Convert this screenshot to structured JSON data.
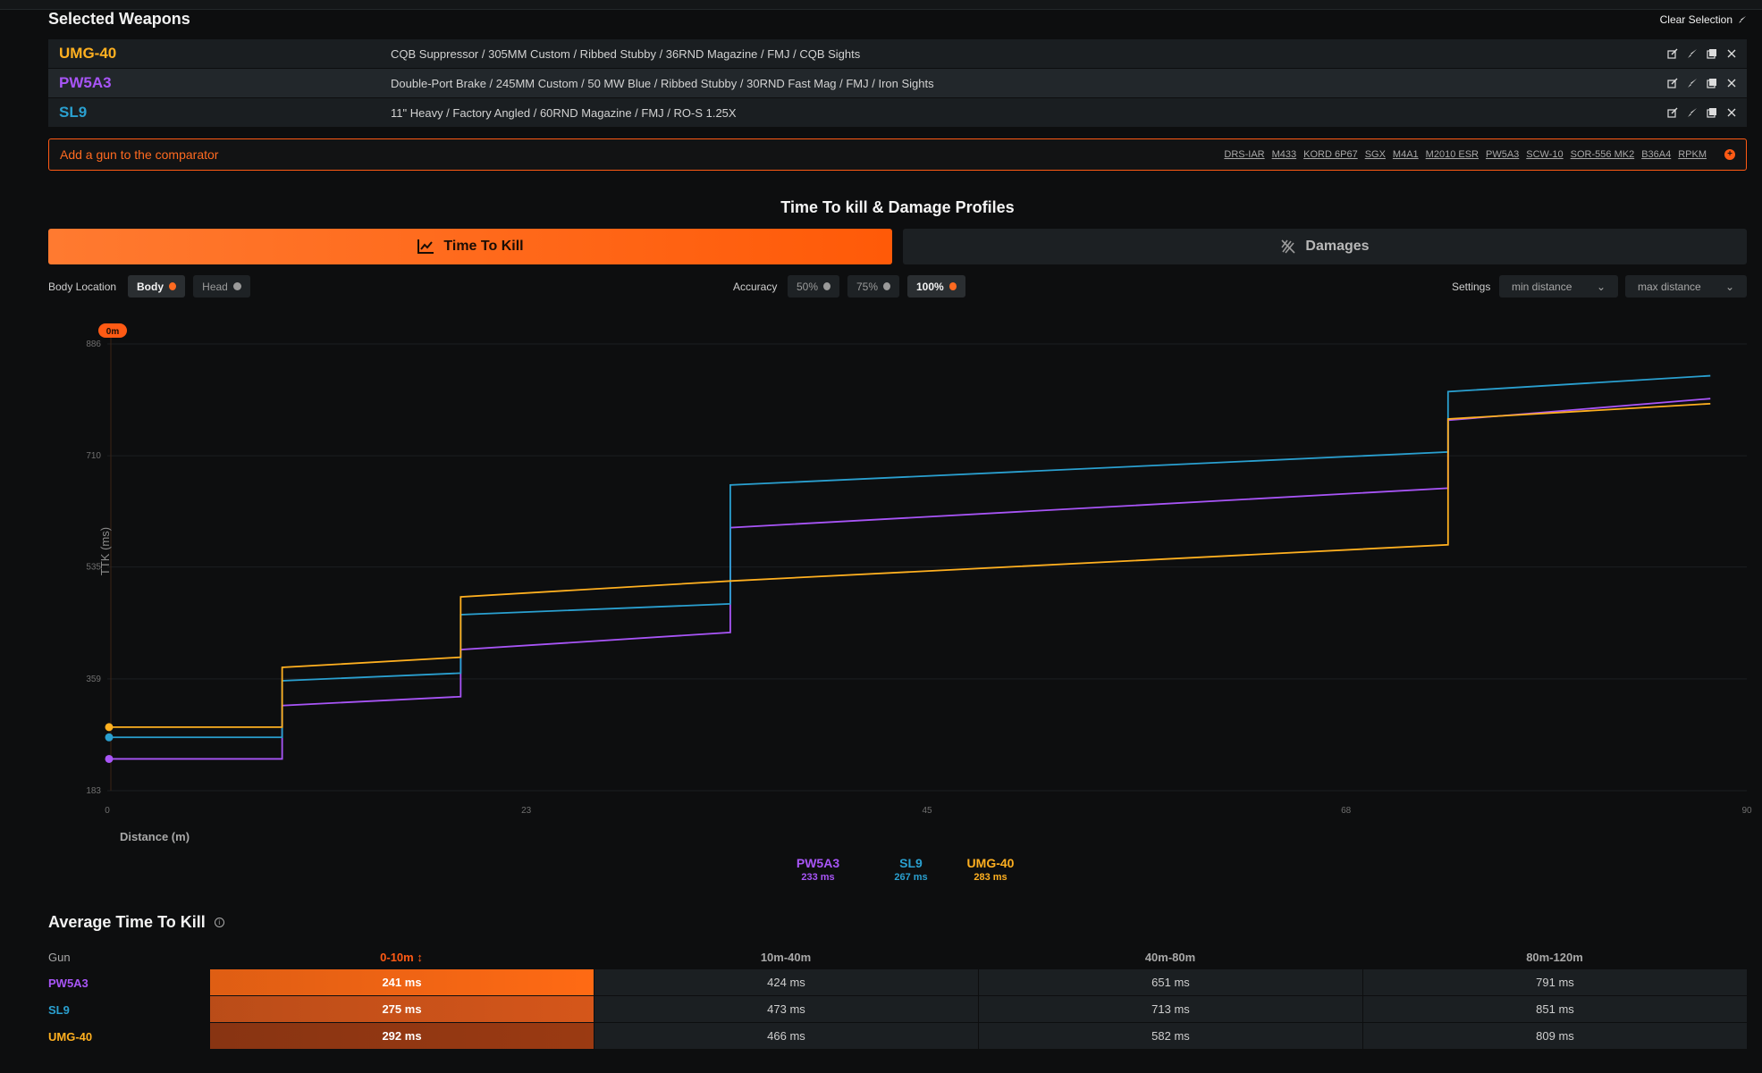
{
  "selected": {
    "title": "Selected Weapons",
    "clear_label": "Clear Selection",
    "weapons": [
      {
        "name": "UMG-40",
        "color": "#ffb020",
        "build": "CQB Suppressor / 305MM Custom / Ribbed Stubby / 36RND Magazine / FMJ / CQB Sights"
      },
      {
        "name": "PW5A3",
        "color": "#a855f7",
        "build": "Double-Port Brake / 245MM Custom / 50 MW Blue / Ribbed Stubby / 30RND Fast Mag / FMJ / Iron Sights"
      },
      {
        "name": "SL9",
        "color": "#2aa0d0",
        "build": "11\" Heavy / Factory Angled / 60RND Magazine / FMJ / RO-S 1.25X"
      }
    ]
  },
  "add_gun": {
    "placeholder": "Add a gun to the comparator",
    "suggestions": [
      "DRS-IAR",
      "M433",
      "KORD 6P67",
      "SGX",
      "M4A1",
      "M2010 ESR",
      "PW5A3",
      "SCW-10",
      "SOR-556 MK2",
      "B36A4",
      "RPKM"
    ]
  },
  "section_title": "Time To kill & Damage Profiles",
  "tabs": {
    "ttk": "Time To Kill",
    "damages": "Damages"
  },
  "filters": {
    "body_location_label": "Body Location",
    "body_options": [
      {
        "label": "Body",
        "active": true
      },
      {
        "label": "Head",
        "active": false
      }
    ],
    "accuracy_label": "Accuracy",
    "accuracy_options": [
      {
        "label": "50%",
        "active": false
      },
      {
        "label": "75%",
        "active": false
      },
      {
        "label": "100%",
        "active": true
      }
    ],
    "settings_label": "Settings",
    "min_distance": "min distance",
    "max_distance": "max distance"
  },
  "chart_data": {
    "type": "line",
    "title": "",
    "xlabel": "Distance (m)",
    "ylabel": "TTK (ms)",
    "xlim": [
      0,
      90
    ],
    "ylim": [
      183,
      886
    ],
    "x_ticks": [
      "0",
      "23",
      "45",
      "68",
      "90"
    ],
    "y_ticks": [
      "886",
      "710",
      "535",
      "359",
      "183"
    ],
    "cursor_label": "0m",
    "series": [
      {
        "name": "PW5A3",
        "color": "#a855f7",
        "points": [
          [
            0,
            233
          ],
          [
            9.6,
            233
          ],
          [
            9.6,
            317
          ],
          [
            19.4,
            331
          ],
          [
            19.4,
            405
          ],
          [
            34.2,
            432
          ],
          [
            34.2,
            597
          ],
          [
            73.6,
            659
          ],
          [
            73.6,
            766
          ],
          [
            88,
            800
          ]
        ]
      },
      {
        "name": "SL9",
        "color": "#2aa0d0",
        "points": [
          [
            0,
            267
          ],
          [
            9.6,
            267
          ],
          [
            9.6,
            356
          ],
          [
            19.4,
            368
          ],
          [
            19.4,
            460
          ],
          [
            34.2,
            477
          ],
          [
            34.2,
            664
          ],
          [
            73.6,
            716
          ],
          [
            73.6,
            811
          ],
          [
            88,
            836
          ]
        ]
      },
      {
        "name": "UMG-40",
        "color": "#ffb020",
        "points": [
          [
            0,
            283
          ],
          [
            9.6,
            283
          ],
          [
            9.6,
            377
          ],
          [
            19.4,
            393
          ],
          [
            19.4,
            488
          ],
          [
            34.2,
            513
          ],
          [
            34.2,
            513
          ],
          [
            73.6,
            570
          ],
          [
            73.6,
            768
          ],
          [
            88,
            792
          ]
        ]
      }
    ]
  },
  "legend": [
    {
      "name": "PW5A3",
      "value": "233 ms",
      "color": "#a855f7"
    },
    {
      "name": "SL9",
      "value": "267 ms",
      "color": "#2aa0d0"
    },
    {
      "name": "UMG-40",
      "value": "283 ms",
      "color": "#ffb020"
    }
  ],
  "avg": {
    "title": "Average Time To Kill",
    "gun_header": "Gun",
    "columns": [
      "0-10m ↕",
      "10m-40m",
      "40m-80m",
      "80m-120m"
    ],
    "rows": [
      {
        "gun": "PW5A3",
        "color": "#a855f7",
        "values": [
          "241 ms",
          "424 ms",
          "651 ms",
          "791 ms"
        ],
        "heat": "#ff6a14"
      },
      {
        "gun": "SL9",
        "color": "#2aa0d0",
        "values": [
          "275 ms",
          "473 ms",
          "713 ms",
          "851 ms"
        ],
        "heat": "#d5561a"
      },
      {
        "gun": "UMG-40",
        "color": "#ffb020",
        "values": [
          "292 ms",
          "466 ms",
          "582 ms",
          "809 ms"
        ],
        "heat": "#9b3a12"
      }
    ]
  }
}
